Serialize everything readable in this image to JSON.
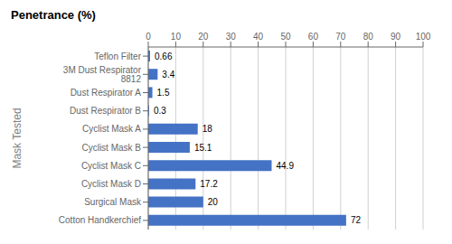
{
  "chart_data": {
    "type": "bar",
    "orientation": "horizontal",
    "title": "Penetrance (%)",
    "ylabel": "Mask Tested",
    "categories": [
      "Cotton Handkerchief",
      "Surgical Mask",
      "Cyclist Mask D",
      "Cyclist Mask C",
      "Cyclist Mask B",
      "Cyclist Mask A",
      "Dust Respirator B",
      "Dust Respirator A",
      "3M Dust Respirator 8812",
      "Teflon Filter"
    ],
    "values": [
      72,
      20,
      17.2,
      44.9,
      15.1,
      18,
      0.3,
      1.5,
      3.4,
      0.66
    ],
    "color": "#4472C4",
    "xlim": [
      0,
      100
    ],
    "xticks": [
      0,
      10,
      20,
      30,
      40,
      50,
      60,
      70,
      80,
      90,
      100
    ],
    "grid": true,
    "data_labels": true
  }
}
